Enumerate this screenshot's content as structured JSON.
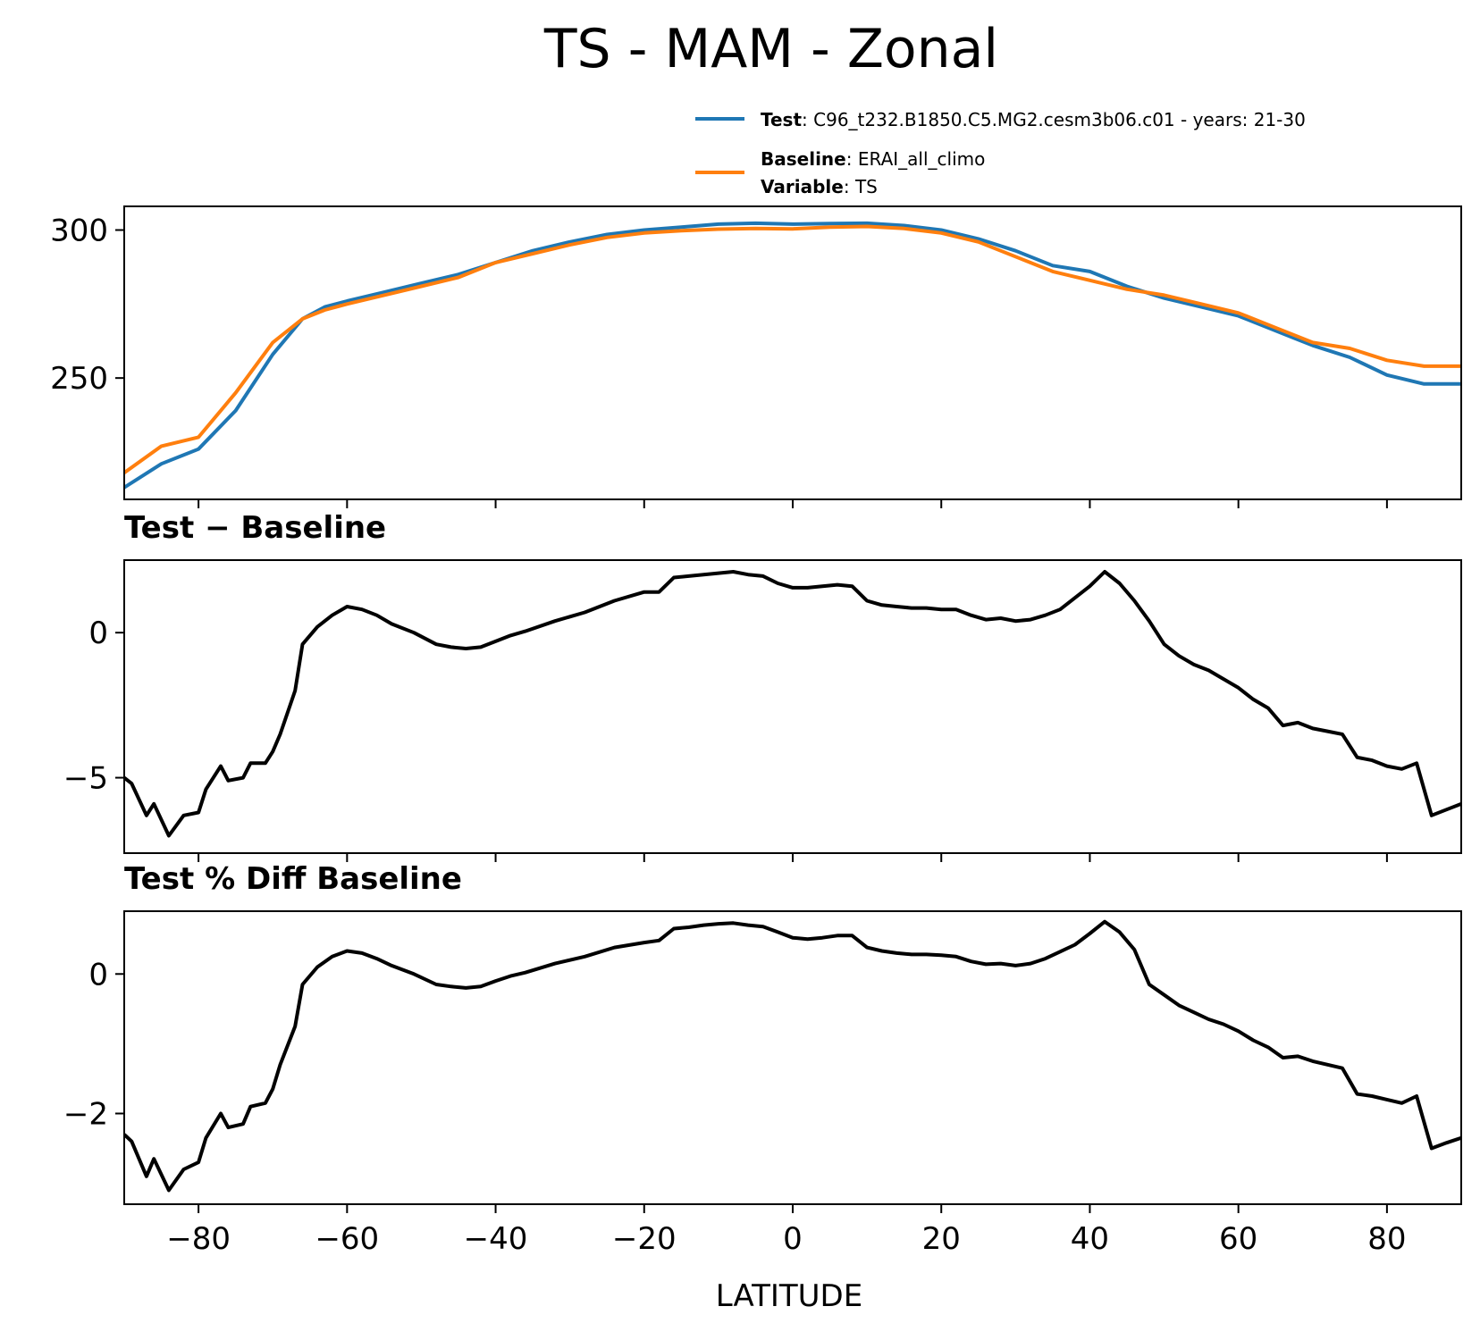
{
  "figure": {
    "title": "TS - MAM - Zonal",
    "xlabel": "LATITUDE",
    "colors": {
      "test": "#1f77b4",
      "baseline": "#ff7f0e",
      "diff": "#000000"
    }
  },
  "legend": {
    "test": {
      "key": "Test",
      "sep": ": ",
      "value": "C96_t232.B1850.C5.MG2.cesm3b06.c01 - years: 21-30"
    },
    "baseline": {
      "key": "Baseline",
      "sep": ": ",
      "value": "ERAI_all_climo"
    },
    "variable": {
      "key": "Variable",
      "sep": ": ",
      "value": "TS"
    }
  },
  "chart_data": [
    {
      "type": "line",
      "title": "",
      "xlabel": "LATITUDE",
      "ylabel": "",
      "xlim": [
        -90,
        90
      ],
      "ylim": [
        209,
        308
      ],
      "yticks": [
        250,
        300
      ],
      "xticks": [
        -80,
        -60,
        -40,
        -20,
        0,
        20,
        40,
        60,
        80
      ],
      "grid": false,
      "legend_position": "top-right",
      "x": [
        -90,
        -85,
        -80,
        -75,
        -70,
        -66,
        -63,
        -60,
        -55,
        -50,
        -45,
        -40,
        -35,
        -30,
        -25,
        -20,
        -15,
        -10,
        -5,
        0,
        5,
        10,
        15,
        20,
        25,
        30,
        35,
        40,
        45,
        50,
        55,
        60,
        65,
        70,
        75,
        80,
        85,
        90
      ],
      "series": [
        {
          "name": "Test",
          "values": [
            213,
            221,
            226,
            239,
            258,
            270,
            274,
            276,
            279,
            282,
            285,
            289,
            293,
            296,
            298.5,
            300,
            301,
            302,
            302.3,
            302,
            302.2,
            302.3,
            301.5,
            300,
            297,
            293,
            288,
            286,
            281,
            277,
            274,
            271,
            266,
            261,
            257,
            251,
            248,
            248
          ]
        },
        {
          "name": "Baseline",
          "values": [
            218,
            227,
            230,
            245,
            262,
            270,
            273,
            275,
            278,
            281,
            284,
            289,
            292,
            295,
            297.5,
            299,
            299.8,
            300.3,
            300.5,
            300.4,
            301,
            301.2,
            300.5,
            299,
            296,
            291,
            286,
            283,
            280,
            278,
            275,
            272,
            267,
            262,
            260,
            256,
            254,
            254
          ]
        }
      ]
    },
    {
      "type": "line",
      "title": "Test − Baseline",
      "xlabel": "LATITUDE",
      "ylabel": "",
      "xlim": [
        -90,
        90
      ],
      "ylim": [
        -7.6,
        2.5
      ],
      "yticks": [
        -5,
        0
      ],
      "xticks": [
        -80,
        -60,
        -40,
        -20,
        0,
        20,
        40,
        60,
        80
      ],
      "grid": false,
      "x": [
        -90,
        -89,
        -87,
        -86,
        -84,
        -82,
        -80,
        -79,
        -77,
        -76,
        -74,
        -73,
        -71,
        -70,
        -69,
        -67,
        -66,
        -64,
        -62,
        -60,
        -58,
        -56,
        -54,
        -51,
        -48,
        -46,
        -44,
        -42,
        -40,
        -38,
        -36,
        -32,
        -28,
        -24,
        -20,
        -18,
        -16,
        -14,
        -12,
        -10,
        -8,
        -6,
        -4,
        -2,
        0,
        2,
        4,
        6,
        8,
        10,
        12,
        14,
        16,
        18,
        20,
        22,
        24,
        26,
        28,
        30,
        32,
        34,
        36,
        38,
        40,
        42,
        44,
        46,
        48,
        50,
        52,
        54,
        56,
        58,
        60,
        62,
        64,
        66,
        68,
        70,
        72,
        74,
        76,
        78,
        80,
        82,
        84,
        86,
        88,
        90
      ],
      "series": [
        {
          "name": "",
          "values": [
            -5,
            -5.2,
            -6.3,
            -5.9,
            -7,
            -6.3,
            -6.2,
            -5.4,
            -4.6,
            -5.1,
            -5.0,
            -4.5,
            -4.5,
            -4.1,
            -3.5,
            -2.0,
            -0.4,
            0.2,
            0.6,
            0.9,
            0.8,
            0.6,
            0.3,
            0.0,
            -0.4,
            -0.5,
            -0.55,
            -0.5,
            -0.3,
            -0.1,
            0.05,
            0.4,
            0.7,
            1.1,
            1.4,
            1.4,
            1.9,
            1.95,
            2.0,
            2.05,
            2.1,
            2.0,
            1.95,
            1.7,
            1.55,
            1.55,
            1.6,
            1.65,
            1.6,
            1.1,
            0.95,
            0.9,
            0.85,
            0.85,
            0.8,
            0.8,
            0.6,
            0.45,
            0.5,
            0.4,
            0.45,
            0.6,
            0.8,
            1.2,
            1.6,
            2.1,
            1.7,
            1.1,
            0.4,
            -0.4,
            -0.8,
            -1.1,
            -1.3,
            -1.6,
            -1.9,
            -2.3,
            -2.6,
            -3.2,
            -3.1,
            -3.3,
            -3.4,
            -3.5,
            -4.3,
            -4.4,
            -4.6,
            -4.7,
            -4.5,
            -6.3,
            -6.1,
            -5.9
          ]
        }
      ]
    },
    {
      "type": "line",
      "title": "Test % Diff Baseline",
      "xlabel": "LATITUDE",
      "ylabel": "",
      "xlim": [
        -90,
        90
      ],
      "ylim": [
        -3.3,
        0.9
      ],
      "yticks": [
        -2,
        0
      ],
      "xticks": [
        -80,
        -60,
        -40,
        -20,
        0,
        20,
        40,
        60,
        80
      ],
      "grid": false,
      "x": [
        -90,
        -89,
        -87,
        -86,
        -84,
        -82,
        -80,
        -79,
        -77,
        -76,
        -74,
        -73,
        -71,
        -70,
        -69,
        -67,
        -66,
        -64,
        -62,
        -60,
        -58,
        -56,
        -54,
        -51,
        -48,
        -46,
        -44,
        -42,
        -40,
        -38,
        -36,
        -32,
        -28,
        -24,
        -20,
        -18,
        -16,
        -14,
        -12,
        -10,
        -8,
        -6,
        -4,
        -2,
        0,
        2,
        4,
        6,
        8,
        10,
        12,
        14,
        16,
        18,
        20,
        22,
        24,
        26,
        28,
        30,
        32,
        34,
        36,
        38,
        40,
        42,
        44,
        46,
        48,
        50,
        52,
        54,
        56,
        58,
        60,
        62,
        64,
        66,
        68,
        70,
        72,
        74,
        76,
        78,
        80,
        82,
        84,
        86,
        88,
        90
      ],
      "series": [
        {
          "name": "",
          "values": [
            -2.3,
            -2.4,
            -2.9,
            -2.65,
            -3.1,
            -2.8,
            -2.7,
            -2.35,
            -2.0,
            -2.2,
            -2.15,
            -1.9,
            -1.85,
            -1.65,
            -1.3,
            -0.75,
            -0.15,
            0.1,
            0.25,
            0.33,
            0.3,
            0.22,
            0.12,
            0.0,
            -0.15,
            -0.18,
            -0.2,
            -0.18,
            -0.1,
            -0.03,
            0.02,
            0.15,
            0.25,
            0.38,
            0.45,
            0.48,
            0.65,
            0.67,
            0.7,
            0.72,
            0.73,
            0.7,
            0.68,
            0.6,
            0.52,
            0.5,
            0.52,
            0.55,
            0.55,
            0.38,
            0.33,
            0.3,
            0.28,
            0.28,
            0.27,
            0.25,
            0.18,
            0.14,
            0.15,
            0.12,
            0.15,
            0.22,
            0.32,
            0.42,
            0.58,
            0.75,
            0.6,
            0.35,
            -0.15,
            -0.3,
            -0.45,
            -0.55,
            -0.65,
            -0.72,
            -0.82,
            -0.95,
            -1.05,
            -1.2,
            -1.18,
            -1.25,
            -1.3,
            -1.35,
            -1.72,
            -1.75,
            -1.8,
            -1.85,
            -1.75,
            -2.5,
            -2.42,
            -2.35
          ]
        }
      ]
    }
  ]
}
